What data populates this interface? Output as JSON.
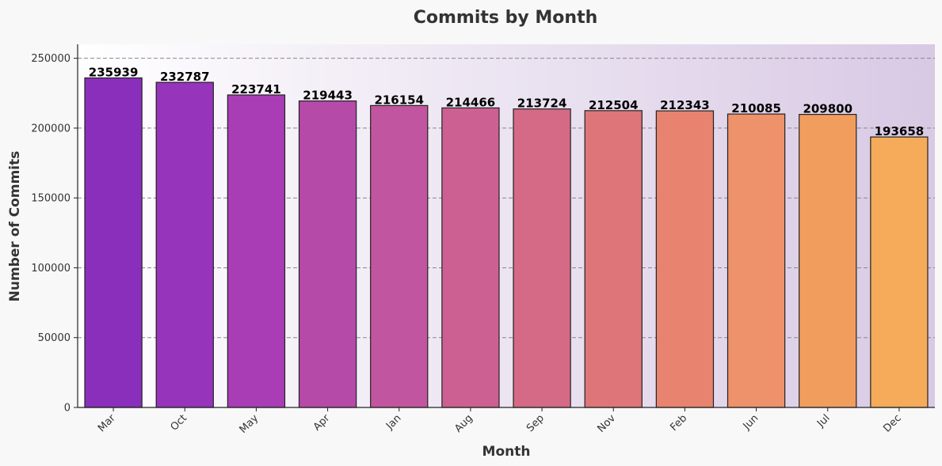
{
  "chart_data": {
    "type": "bar",
    "title": "Commits by Month",
    "xlabel": "Month",
    "ylabel": "Number of Commits",
    "categories": [
      "Mar",
      "Oct",
      "May",
      "Apr",
      "Jan",
      "Aug",
      "Sep",
      "Nov",
      "Feb",
      "Jun",
      "Jul",
      "Dec"
    ],
    "values": [
      235939,
      232787,
      223741,
      219443,
      216154,
      214466,
      213724,
      212504,
      212343,
      210085,
      209800,
      193658
    ],
    "ylim": [
      0,
      260000
    ],
    "yticks": [
      0,
      50000,
      100000,
      150000,
      200000,
      250000
    ],
    "grid": "y-dashed",
    "bar_colors": [
      "#8a2fbb",
      "#9634bb",
      "#a83db5",
      "#b64aa9",
      "#c2559f",
      "#cc6093",
      "#d56a86",
      "#de7679",
      "#e8836f",
      "#ed926a",
      "#f19d5e",
      "#f5ab59"
    ],
    "background_gradient": [
      "#ffffff",
      "#d8c9e4"
    ]
  }
}
